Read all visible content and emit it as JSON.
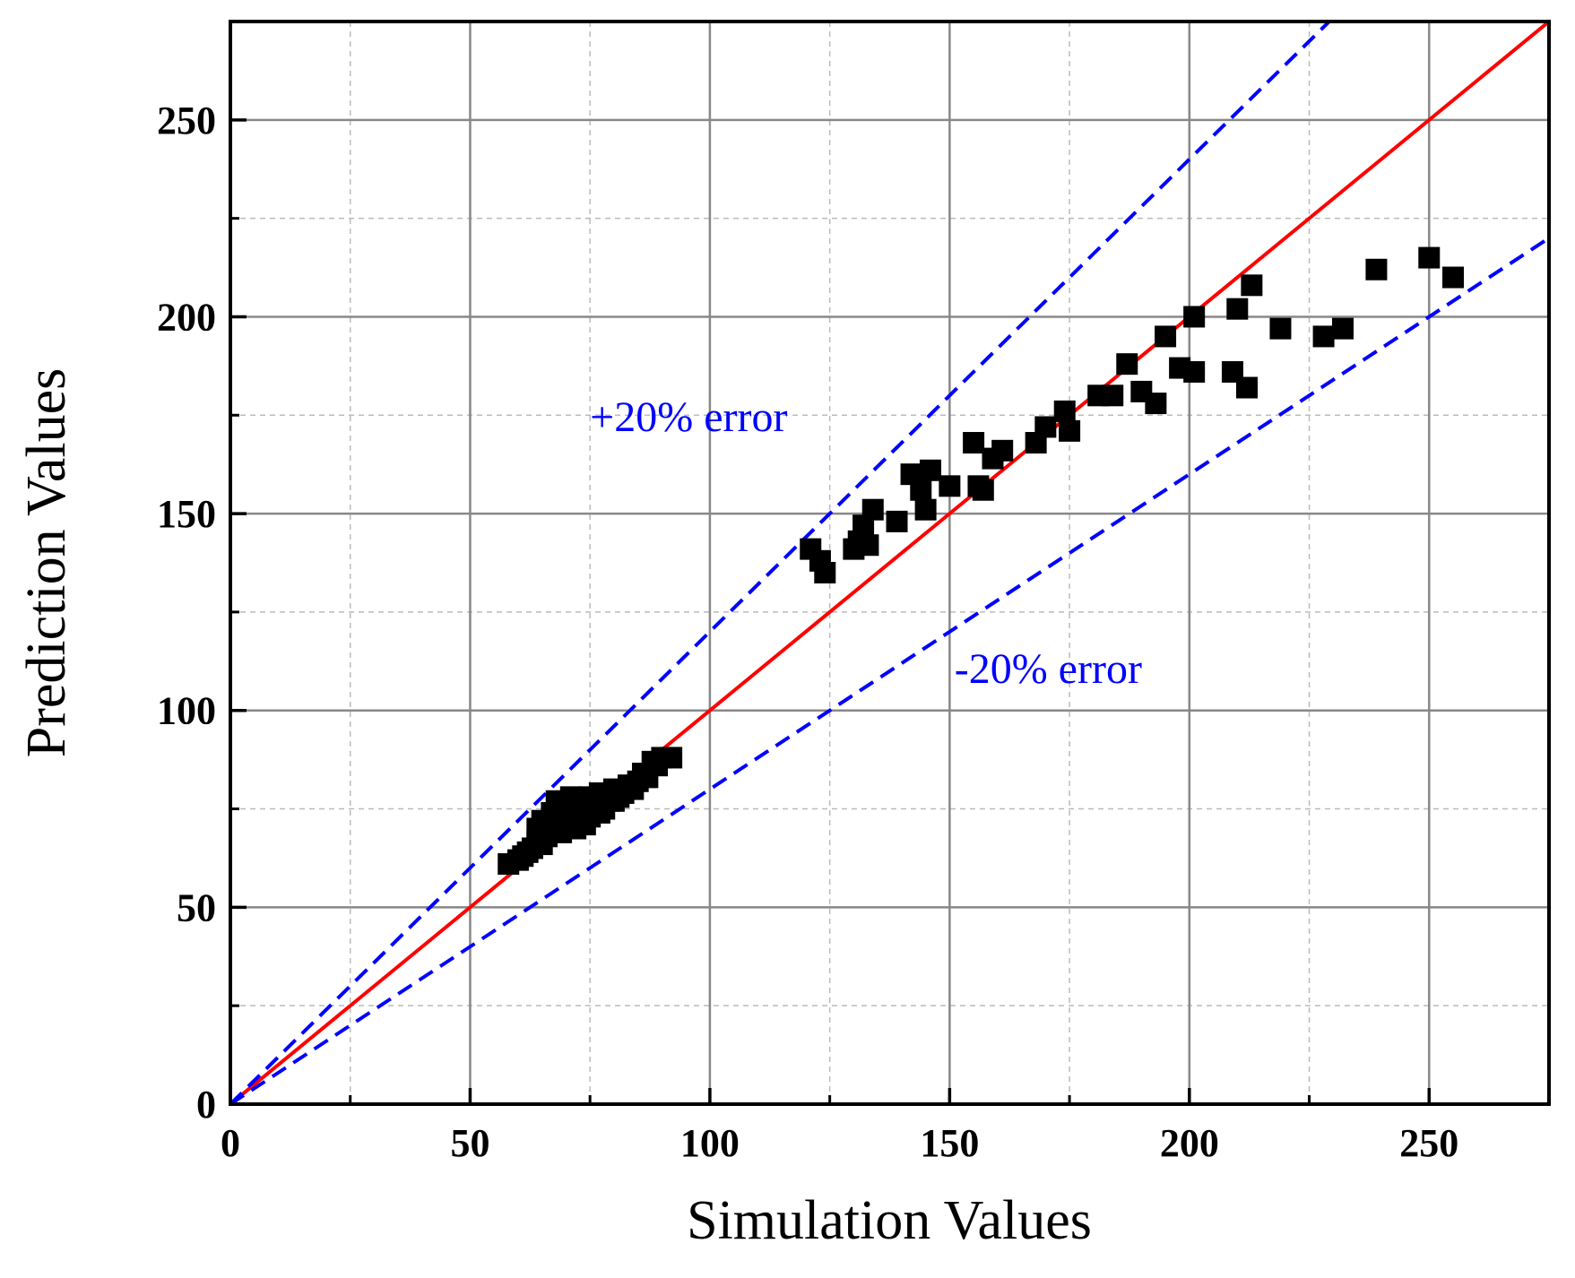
{
  "chart_data": {
    "type": "scatter",
    "title": "",
    "xlabel": "Simulation Values",
    "ylabel": "Prediction Values",
    "xlim": [
      0,
      275
    ],
    "ylim": [
      0,
      275
    ],
    "xticks": [
      0,
      50,
      100,
      150,
      200,
      250
    ],
    "yticks": [
      0,
      50,
      100,
      150,
      200,
      250
    ],
    "minor_step": 25,
    "grid": true,
    "legend": "none",
    "colors": {
      "points": "#000000",
      "ideal_line": "#ff0000",
      "error_lines": "#0000ff",
      "major_grid": "#888888",
      "minor_grid": "#bbbbbb"
    },
    "reference_lines": [
      {
        "name": "ideal",
        "slope": 1.0,
        "style": "solid"
      },
      {
        "name": "+20% error",
        "slope": 1.2,
        "style": "dashed"
      },
      {
        "name": "-20% error",
        "slope": 0.8,
        "style": "dashed"
      }
    ],
    "annotations": [
      {
        "text": "+20% error",
        "x": 75,
        "y": 171,
        "color": "#0000ff"
      },
      {
        "text": "-20% error",
        "x": 151,
        "y": 107,
        "color": "#0000ff"
      }
    ],
    "series": [
      {
        "name": "data",
        "points": [
          [
            58,
            61
          ],
          [
            60,
            62
          ],
          [
            61,
            63
          ],
          [
            62,
            64
          ],
          [
            63,
            65
          ],
          [
            64,
            67
          ],
          [
            64,
            70
          ],
          [
            65,
            72
          ],
          [
            65,
            66
          ],
          [
            66,
            68
          ],
          [
            67,
            70
          ],
          [
            67,
            74
          ],
          [
            68,
            77
          ],
          [
            68,
            72
          ],
          [
            69,
            69
          ],
          [
            69,
            75
          ],
          [
            70,
            71
          ],
          [
            70,
            73
          ],
          [
            71,
            76
          ],
          [
            71,
            78
          ],
          [
            72,
            70
          ],
          [
            72,
            74
          ],
          [
            73,
            77
          ],
          [
            73,
            72
          ],
          [
            74,
            75
          ],
          [
            74,
            71
          ],
          [
            75,
            78
          ],
          [
            75,
            73
          ],
          [
            76,
            76
          ],
          [
            77,
            74
          ],
          [
            77,
            79
          ],
          [
            78,
            75
          ],
          [
            79,
            77
          ],
          [
            80,
            80
          ],
          [
            80,
            77
          ],
          [
            81,
            78
          ],
          [
            82,
            79
          ],
          [
            83,
            81
          ],
          [
            84,
            80
          ],
          [
            85,
            82
          ],
          [
            86,
            84
          ],
          [
            87,
            83
          ],
          [
            88,
            87
          ],
          [
            89,
            86
          ],
          [
            90,
            88
          ],
          [
            92,
            88
          ],
          [
            121,
            141
          ],
          [
            123,
            138
          ],
          [
            124,
            135
          ],
          [
            130,
            141
          ],
          [
            131,
            143
          ],
          [
            132,
            147
          ],
          [
            133,
            142
          ],
          [
            134,
            151
          ],
          [
            139,
            148
          ],
          [
            142,
            160
          ],
          [
            144,
            156
          ],
          [
            145,
            151
          ],
          [
            146,
            161
          ],
          [
            150,
            157
          ],
          [
            155,
            168
          ],
          [
            156,
            157
          ],
          [
            157,
            156
          ],
          [
            159,
            164
          ],
          [
            161,
            166
          ],
          [
            168,
            168
          ],
          [
            170,
            172
          ],
          [
            174,
            176
          ],
          [
            175,
            171
          ],
          [
            181,
            180
          ],
          [
            184,
            180
          ],
          [
            187,
            188
          ],
          [
            190,
            181
          ],
          [
            193,
            178
          ],
          [
            195,
            195
          ],
          [
            198,
            187
          ],
          [
            201,
            186
          ],
          [
            201,
            200
          ],
          [
            209,
            186
          ],
          [
            210,
            202
          ],
          [
            212,
            182
          ],
          [
            213,
            208
          ],
          [
            219,
            197
          ],
          [
            228,
            195
          ],
          [
            232,
            197
          ],
          [
            239,
            212
          ],
          [
            250,
            215
          ],
          [
            255,
            210
          ]
        ]
      }
    ]
  }
}
